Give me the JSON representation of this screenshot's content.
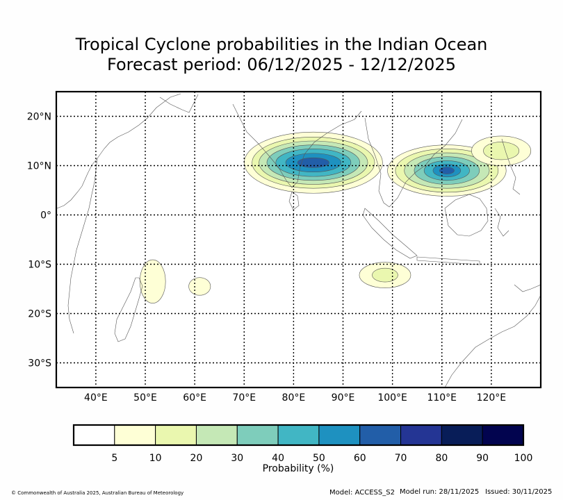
{
  "title": {
    "line1": "Tropical Cyclone probabilities in the Indian Ocean",
    "line2": "Forecast period: 06/12/2025 - 12/12/2025"
  },
  "map": {
    "lon_range": [
      32,
      130
    ],
    "lat_range": [
      -35,
      25
    ],
    "lon_ticks": [
      {
        "value": 40,
        "label": "40°E"
      },
      {
        "value": 50,
        "label": "50°E"
      },
      {
        "value": 60,
        "label": "60°E"
      },
      {
        "value": 70,
        "label": "70°E"
      },
      {
        "value": 80,
        "label": "80°E"
      },
      {
        "value": 90,
        "label": "90°E"
      },
      {
        "value": 100,
        "label": "100°E"
      },
      {
        "value": 110,
        "label": "110°E"
      },
      {
        "value": 120,
        "label": "120°E"
      }
    ],
    "lat_ticks": [
      {
        "value": 20,
        "label": "20°N"
      },
      {
        "value": 10,
        "label": "10°N"
      },
      {
        "value": 0,
        "label": "0°"
      },
      {
        "value": -10,
        "label": "10°S"
      },
      {
        "value": -20,
        "label": "20°S"
      },
      {
        "value": -30,
        "label": "30°S"
      }
    ],
    "probability_regions": [
      {
        "name": "bay-of-bengal",
        "center": [
          84,
          10.6
        ],
        "radii": [
          [
            14,
            6.2
          ],
          [
            12.4,
            5.2
          ],
          [
            11,
            4.4
          ],
          [
            9.4,
            3.6
          ],
          [
            7.6,
            2.8
          ],
          [
            5.6,
            1.9
          ],
          [
            3.2,
            1.0
          ]
        ],
        "levels": [
          5,
          10,
          20,
          30,
          40,
          50,
          60
        ]
      },
      {
        "name": "south-china-sea",
        "center": [
          111,
          9
        ],
        "radii": [
          [
            12,
            5.2
          ],
          [
            10.4,
            4.4
          ],
          [
            8.6,
            3.6
          ],
          [
            6.6,
            2.8
          ],
          [
            4.6,
            2.0
          ],
          [
            2.8,
            1.3
          ],
          [
            1.5,
            0.7
          ]
        ],
        "levels": [
          5,
          10,
          20,
          30,
          40,
          50,
          60
        ]
      },
      {
        "name": "philippine-sea",
        "center": [
          122,
          13
        ],
        "radii": [
          [
            6,
            3.0
          ],
          [
            3.6,
            1.8
          ]
        ],
        "levels": [
          5,
          10
        ]
      },
      {
        "name": "madagascar-east",
        "center": [
          51.5,
          -13.5
        ],
        "radii": [
          [
            2.6,
            4.4
          ]
        ],
        "levels": [
          5
        ]
      },
      {
        "name": "mascarene",
        "center": [
          61,
          -14.5
        ],
        "radii": [
          [
            2.2,
            1.8
          ]
        ],
        "levels": [
          5
        ]
      },
      {
        "name": "timor-sea",
        "center": [
          98.5,
          -12.2
        ],
        "radii": [
          [
            5.2,
            2.6
          ],
          [
            2.6,
            1.4
          ]
        ],
        "levels": [
          5,
          10
        ]
      }
    ]
  },
  "colorbar": {
    "label": "Probability (%)",
    "ticks": [
      "5",
      "10",
      "20",
      "30",
      "40",
      "50",
      "60",
      "70",
      "80",
      "90",
      "100"
    ],
    "colors": [
      "#ffffff",
      "#feffd6",
      "#eaf7af",
      "#c5e8b6",
      "#7ecdbb",
      "#41b6c4",
      "#1e91c0",
      "#225ea8",
      "#243594",
      "#081d58",
      "#02044f"
    ]
  },
  "footer": {
    "copyright": "© Commonwealth of Australia 2025, Australian Bureau of Meteorology",
    "model": "Model: ACCESS_S2",
    "model_run": "Model run: 28/11/2025",
    "issued": "Issued: 30/11/2025"
  }
}
